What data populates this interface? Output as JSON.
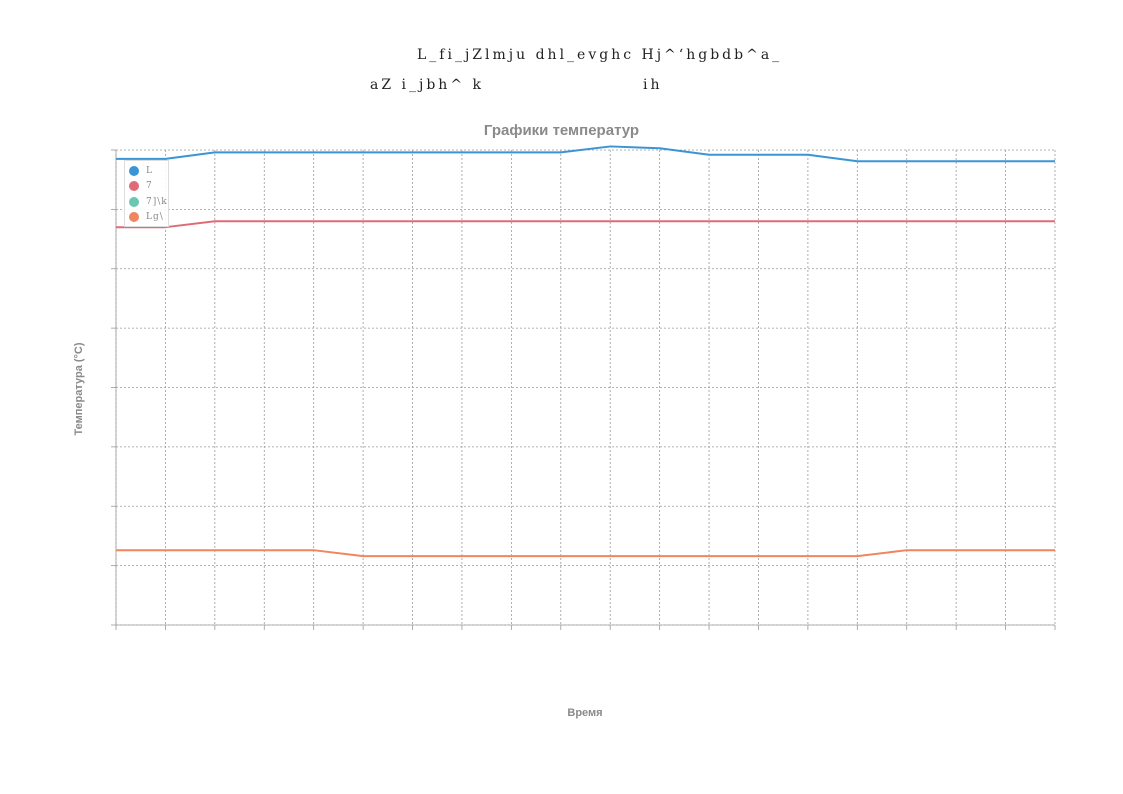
{
  "header": {
    "line1": "L_fi_jZlmju dhl_evghc Hj^‘hgbdb^a_",
    "line2_left": "aZ i_jbh^ k",
    "line2_right": "ih"
  },
  "chart_data": {
    "type": "line",
    "title": "Графики температур",
    "xlabel": "Время",
    "ylabel": "Температура (°C)",
    "x_count": 20,
    "y_grid_lines": 9,
    "grid": true,
    "legend_position": "top-left",
    "series": [
      {
        "name": "L",
        "color": "#3a95d4",
        "values": [
          78.5,
          78.5,
          79.6,
          79.6,
          79.6,
          79.6,
          79.6,
          79.6,
          79.6,
          79.6,
          80.6,
          80.3,
          79.2,
          79.2,
          79.2,
          78.1,
          78.1,
          78.1,
          78.1,
          78.1
        ]
      },
      {
        "name": "7",
        "color": "#e06b78",
        "values": [
          67.0,
          67.0,
          68.0,
          68.0,
          68.0,
          68.0,
          68.0,
          68.0,
          68.0,
          68.0,
          68.0,
          68.0,
          68.0,
          68.0,
          68.0,
          68.0,
          68.0,
          68.0,
          68.0,
          68.0
        ]
      },
      {
        "name": "7]\\k",
        "color": "#6cc7b0",
        "values": []
      },
      {
        "name": "Lg\\",
        "color": "#ef8660",
        "values": [
          12.6,
          12.6,
          12.6,
          12.6,
          12.6,
          11.6,
          11.6,
          11.6,
          11.6,
          11.6,
          11.6,
          11.6,
          11.6,
          11.6,
          11.6,
          11.6,
          12.6,
          12.6,
          12.6,
          12.6
        ]
      }
    ]
  }
}
